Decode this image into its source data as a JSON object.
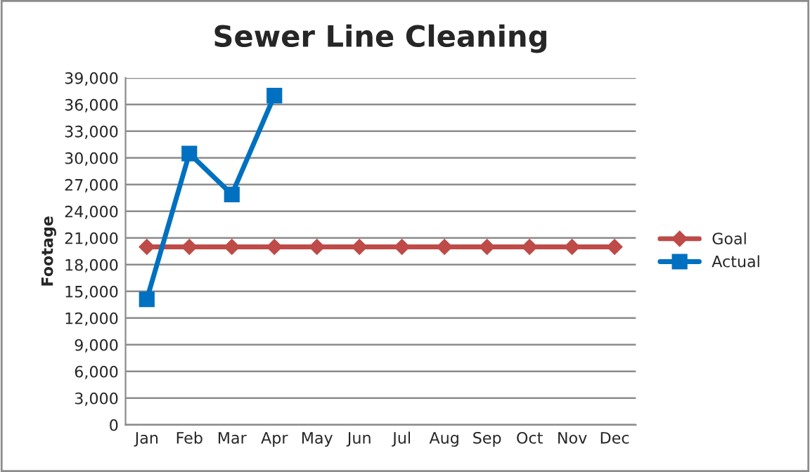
{
  "chart_data": {
    "type": "line",
    "title": "Sewer Line Cleaning",
    "ylabel": "Footage",
    "categories": [
      "Jan",
      "Feb",
      "Mar",
      "Apr",
      "May",
      "Jun",
      "Jul",
      "Aug",
      "Sep",
      "Oct",
      "Nov",
      "Dec"
    ],
    "series": [
      {
        "name": "Goal",
        "color": "#be4b48",
        "marker": "diamond",
        "values": [
          20000,
          20000,
          20000,
          20000,
          20000,
          20000,
          20000,
          20000,
          20000,
          20000,
          20000,
          20000
        ]
      },
      {
        "name": "Actual",
        "color": "#0070c0",
        "marker": "square",
        "values": [
          14100,
          30500,
          25900,
          37000,
          null,
          null,
          null,
          null,
          null,
          null,
          null,
          null
        ]
      }
    ],
    "ylim": [
      0,
      39000
    ],
    "yticks": [
      {
        "value": 0,
        "label": "0"
      },
      {
        "value": 3000,
        "label": "3,000"
      },
      {
        "value": 6000,
        "label": "6,000"
      },
      {
        "value": 9000,
        "label": "9,000"
      },
      {
        "value": 12000,
        "label": "12,000"
      },
      {
        "value": 15000,
        "label": "15,000"
      },
      {
        "value": 18000,
        "label": "18,000"
      },
      {
        "value": 21000,
        "label": "21,000"
      },
      {
        "value": 24000,
        "label": "24,000"
      },
      {
        "value": 27000,
        "label": "27,000"
      },
      {
        "value": 30000,
        "label": "30,000"
      },
      {
        "value": 33000,
        "label": "33,000"
      },
      {
        "value": 36000,
        "label": "36,000"
      },
      {
        "value": 39000,
        "label": "39,000"
      }
    ],
    "grid": "y",
    "legend": "right",
    "line_style": "solid"
  }
}
